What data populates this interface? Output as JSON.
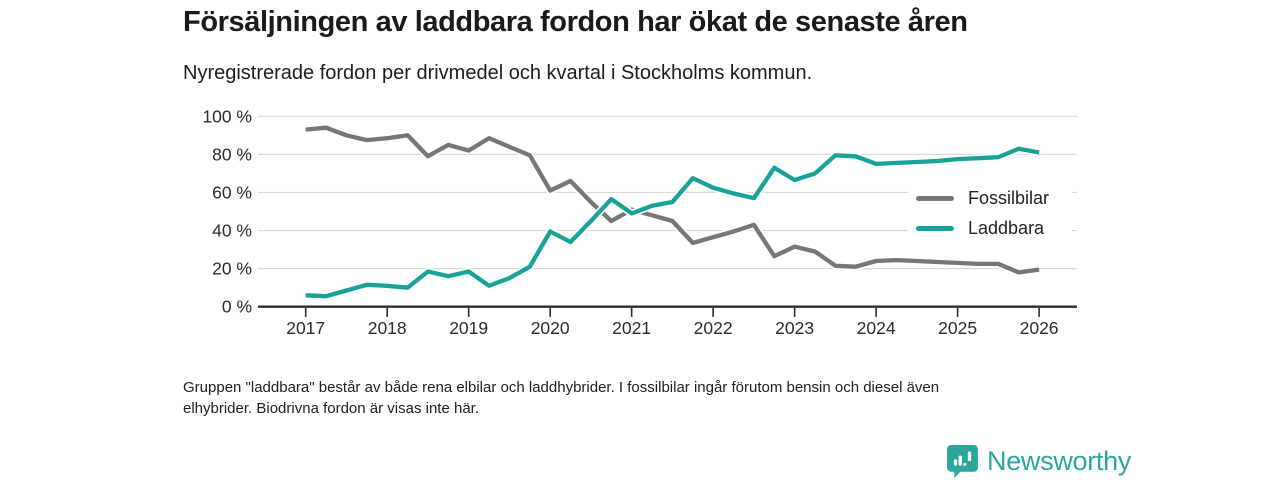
{
  "chart_data": {
    "type": "line",
    "title": "Försäljningen av laddbara fordon har ökat de senaste åren",
    "subtitle": "Nyregistrerade fordon per drivmedel och kvartal i Stockholms kommun.",
    "x_unit": "quarter",
    "ylim": [
      0,
      100
    ],
    "grid": "horizontal",
    "legend_position": "inside-right",
    "x_tick_labels": [
      "2017",
      "2018",
      "2019",
      "2020",
      "2021",
      "2022",
      "2023",
      "2024",
      "2025",
      "2026"
    ],
    "y_tick_labels": [
      "100 %",
      "80 %",
      "60 %",
      "40 %",
      "20 %",
      "0 %"
    ],
    "quarters": [
      "2017 Q1",
      "2017 Q2",
      "2017 Q3",
      "2017 Q4",
      "2018 Q1",
      "2018 Q2",
      "2018 Q3",
      "2018 Q4",
      "2019 Q1",
      "2019 Q2",
      "2019 Q3",
      "2019 Q4",
      "2020 Q1",
      "2020 Q2",
      "2020 Q3",
      "2020 Q4",
      "2021 Q1",
      "2021 Q2",
      "2021 Q3",
      "2021 Q4",
      "2022 Q1",
      "2022 Q2",
      "2022 Q3",
      "2022 Q4",
      "2023 Q1",
      "2023 Q2",
      "2023 Q3",
      "2023 Q4",
      "2024 Q1",
      "2024 Q2",
      "2024 Q3",
      "2024 Q4",
      "2025 Q1",
      "2025 Q2",
      "2025 Q3",
      "2025 Q4",
      "2026 Q1"
    ],
    "series": [
      {
        "name": "Fossilbilar",
        "color": "#76767b",
        "values": [
          93,
          94,
          90,
          87.5,
          88.5,
          90,
          79,
          85,
          82,
          88.5,
          84,
          79.5,
          61,
          66,
          55,
          45,
          51,
          48,
          45,
          33.5,
          36.5,
          39.5,
          43,
          26.5,
          31.5,
          29,
          21.5,
          21,
          24,
          24.5,
          24,
          23.5,
          23,
          22.5,
          22.5,
          18,
          19.5
        ]
      },
      {
        "name": "Laddbara",
        "color": "#17a398",
        "values": [
          6,
          5.5,
          8.5,
          11.5,
          11,
          10,
          18.5,
          16,
          18.5,
          11,
          15,
          21,
          39.5,
          34,
          45,
          56.5,
          49,
          53,
          55,
          67.5,
          62.5,
          59.5,
          57,
          73,
          66.5,
          70,
          79.5,
          79,
          75,
          75.5,
          76,
          76.5,
          77.5,
          78,
          78.5,
          83,
          81
        ]
      }
    ],
    "colors": {
      "grid": "#d9d9d9",
      "axis": "#2d2d2d",
      "tick_text": "#2b2b2b"
    }
  },
  "footnote": {
    "lines": [
      "Gruppen \"laddbara\" består av både rena elbilar och laddhybrider. I fossilbilar ingår förutom bensin och diesel även",
      "elhybrider. Biodrivna fordon är visas inte här."
    ]
  },
  "brand": {
    "name": "Newsworthy",
    "logo_icon": "bar-chart-speech-bubble",
    "color": "#2ca69c"
  }
}
